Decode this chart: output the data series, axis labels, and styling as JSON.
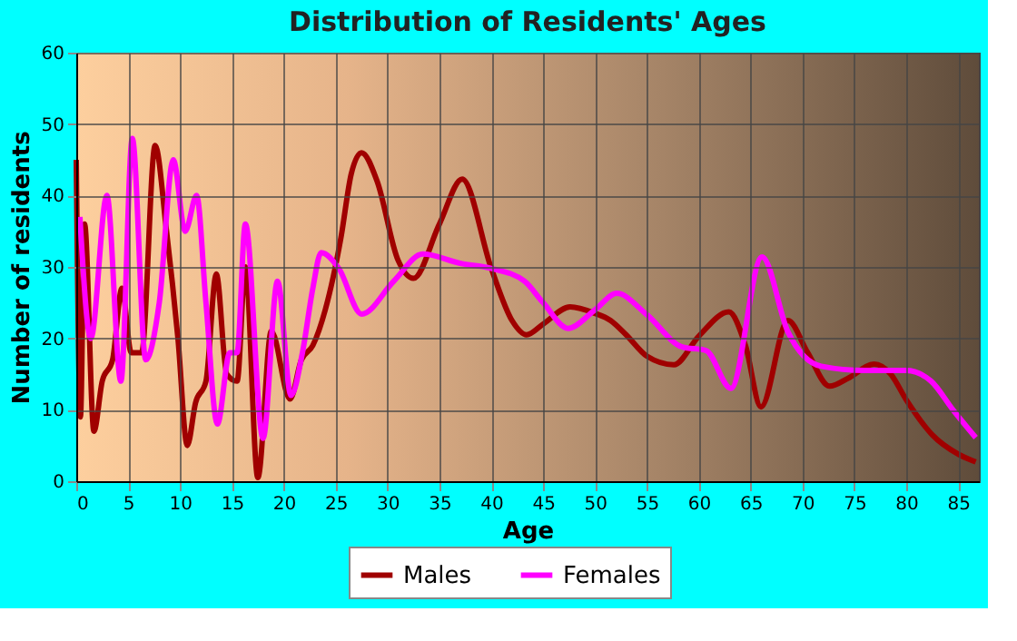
{
  "chart_data": {
    "type": "line",
    "title": "Distribution of Residents' Ages",
    "xlabel": "Age",
    "ylabel": "Number of residents",
    "xlim": [
      0,
      87
    ],
    "xticks": [
      0,
      5,
      10,
      15,
      20,
      25,
      30,
      35,
      40,
      45,
      50,
      55,
      60,
      65,
      70,
      75,
      80,
      85
    ],
    "ylim": [
      0,
      60
    ],
    "yticks": [
      0,
      10,
      20,
      30,
      40,
      50,
      60
    ],
    "grid": true,
    "legend": "bottom",
    "marker": "none",
    "line_style": "solid",
    "series": [
      {
        "name": "Males",
        "color": "#a00000",
        "x": [
          0,
          0.4,
          0.8,
          1.7,
          2.5,
          3.5,
          4.4,
          5.3,
          6.3,
          7.6,
          8.7,
          9.8,
          10.7,
          11.5,
          12.5,
          13.5,
          14.5,
          15.5,
          16.3,
          17.5,
          18.8,
          20.6,
          21.7,
          22.8,
          24,
          25.5,
          26.5,
          27.5,
          29,
          31,
          32.5,
          35,
          37.2,
          40,
          42,
          43.4,
          45,
          47.6,
          50,
          51.5,
          53,
          55,
          57.6,
          60,
          62.9,
          64.5,
          66,
          68.6,
          70.5,
          72.6,
          74.5,
          76.9,
          78.5,
          80,
          82.5,
          85,
          86.7
        ],
        "values": [
          45,
          9,
          36,
          7,
          14,
          17,
          27,
          18,
          18,
          47,
          35,
          20,
          5,
          11,
          14,
          29,
          15,
          14,
          30,
          0.5,
          21,
          11.5,
          17,
          19,
          24,
          34,
          43,
          46,
          42,
          31,
          28.4,
          36,
          42.3,
          29.8,
          22.5,
          20.5,
          22,
          24.4,
          23.5,
          22.5,
          20.5,
          17.5,
          16.3,
          20.3,
          23.7,
          19,
          10.4,
          22.5,
          18,
          13.3,
          14.5,
          16.4,
          15,
          11.4,
          6.5,
          3.8,
          2.7
        ]
      },
      {
        "name": "Females",
        "color": "#ff00ff",
        "x": [
          0.35,
          1.4,
          2.95,
          4.3,
          5.4,
          6.7,
          8,
          9.35,
          10.5,
          11.6,
          12.5,
          13.6,
          14.8,
          15.5,
          16.3,
          18,
          19.4,
          20.7,
          21.8,
          22.8,
          23.6,
          25.3,
          27.5,
          30.6,
          33.4,
          37,
          40,
          43.2,
          45,
          47.4,
          50,
          52.1,
          55,
          58.4,
          60.7,
          63.1,
          66.1,
          68.6,
          71.8,
          76,
          80,
          82.4,
          84.5,
          86.7
        ],
        "values": [
          37,
          20,
          40,
          14,
          48,
          17,
          25,
          45,
          35,
          40,
          25,
          8,
          18,
          18,
          36,
          6,
          28,
          12,
          18,
          27,
          32,
          29.8,
          23.4,
          28,
          31.8,
          30.5,
          29.8,
          28,
          25,
          21.4,
          24,
          26.3,
          23.3,
          18.8,
          18.3,
          13,
          31.4,
          20.9,
          16.1,
          15.5,
          15.5,
          14,
          10,
          6.1
        ]
      }
    ]
  }
}
